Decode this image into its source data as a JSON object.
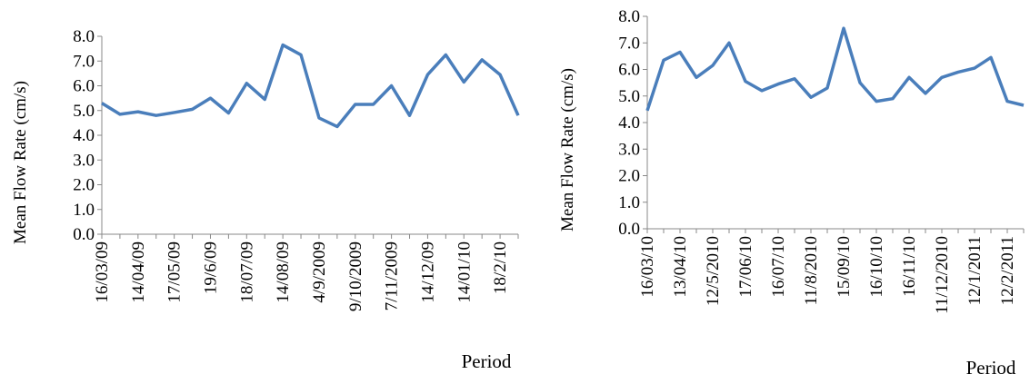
{
  "chart_data": [
    {
      "type": "line",
      "x_label": "Period",
      "y_label": "Mean Flow Rate (cm/s)",
      "categories": [
        "16/03/09",
        null,
        "14/04/09",
        null,
        "17/05/09",
        null,
        "19/6/09",
        null,
        "18/07/09",
        null,
        "14/08/09",
        null,
        "4/9/2009",
        null,
        "9/10/2009",
        null,
        "7/11/2009",
        null,
        "14/12/09",
        null,
        "14/01/10",
        null,
        "18/2/10",
        null
      ],
      "series": [
        {
          "color": "#4a7ebb",
          "values": [
            5.3,
            4.85,
            4.95,
            4.8,
            4.92,
            5.05,
            5.5,
            4.9,
            6.1,
            5.45,
            7.65,
            7.25,
            4.7,
            4.35,
            5.25,
            5.25,
            6.0,
            4.8,
            6.45,
            7.25,
            6.15,
            7.05,
            6.45,
            4.8
          ]
        }
      ],
      "ylim": [
        0,
        8
      ],
      "yticks": [
        {
          "value": 0,
          "label": "0.0"
        },
        {
          "value": 1,
          "label": "1.0"
        },
        {
          "value": 2,
          "label": "2.0"
        },
        {
          "value": 3,
          "label": "3.0"
        },
        {
          "value": 4,
          "label": "4.0"
        },
        {
          "value": 5,
          "label": "5.0"
        },
        {
          "value": 6,
          "label": "6.0"
        },
        {
          "value": 7,
          "label": "7.0"
        },
        {
          "value": 8,
          "label": "8.0"
        }
      ]
    },
    {
      "type": "line",
      "x_label": "Period",
      "y_label": "Mean Flow Rate (cm/s)",
      "categories": [
        "16/03/10",
        null,
        "13/04/10",
        null,
        "12/5/2010",
        null,
        "17/06/10",
        null,
        "16/07/10",
        null,
        "11/8/2010",
        null,
        "15/09/10",
        null,
        "16/10/10",
        null,
        "16/11/10",
        null,
        "11/12/2010",
        null,
        "12/1/2011",
        null,
        "12/2/2011",
        null
      ],
      "series": [
        {
          "color": "#4a7ebb",
          "values": [
            4.45,
            6.35,
            6.65,
            5.7,
            6.15,
            7.0,
            5.55,
            5.2,
            5.45,
            5.65,
            4.95,
            5.3,
            7.55,
            5.5,
            4.8,
            4.9,
            5.7,
            5.1,
            5.7,
            5.9,
            6.05,
            6.45,
            4.8,
            4.65
          ]
        }
      ],
      "ylim": [
        0,
        8
      ],
      "yticks": [
        {
          "value": 0,
          "label": "0.0"
        },
        {
          "value": 1,
          "label": "1.0"
        },
        {
          "value": 2,
          "label": "2.0"
        },
        {
          "value": 3,
          "label": "3.0"
        },
        {
          "value": 4,
          "label": "4.0"
        },
        {
          "value": 5,
          "label": "5.0"
        },
        {
          "value": 6,
          "label": "6.0"
        },
        {
          "value": 7,
          "label": "7.0"
        },
        {
          "value": 8,
          "label": "8.0"
        }
      ]
    }
  ]
}
